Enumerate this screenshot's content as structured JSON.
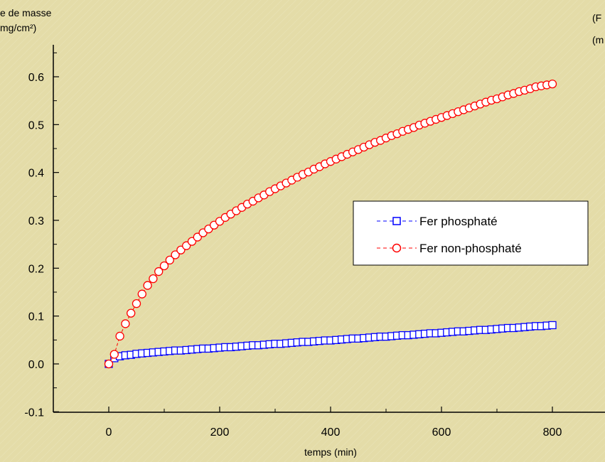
{
  "chart_data": {
    "type": "scatter",
    "title": "",
    "xlabel": "temps (min)",
    "ylabel_lines": [
      "e de masse",
      "mg/cm²)"
    ],
    "corner_text_lines": [
      "(F",
      "(m"
    ],
    "xlim": [
      -100,
      900
    ],
    "ylim": [
      -0.1,
      0.65
    ],
    "xticks": [
      0,
      200,
      400,
      600,
      800
    ],
    "xtick_labels": [
      "0",
      "200",
      "400",
      "600",
      "800"
    ],
    "yticks": [
      -0.1,
      0.0,
      0.1,
      0.2,
      0.3,
      0.4,
      0.5,
      0.6
    ],
    "ytick_labels": [
      "-0.1",
      "0.0",
      "0.1",
      "0.2",
      "0.3",
      "0.4",
      "0.5",
      "0.6"
    ],
    "grid": false,
    "legend_position": "center-right",
    "series": [
      {
        "name": "Fer phosphaté",
        "marker": "square",
        "color": "#0000ff",
        "x": [
          0,
          10,
          20,
          30,
          40,
          50,
          60,
          70,
          80,
          90,
          100,
          110,
          120,
          130,
          140,
          150,
          160,
          170,
          180,
          190,
          200,
          210,
          220,
          230,
          240,
          250,
          260,
          270,
          280,
          290,
          300,
          310,
          320,
          330,
          340,
          350,
          360,
          370,
          380,
          390,
          400,
          410,
          420,
          430,
          440,
          450,
          460,
          470,
          480,
          490,
          500,
          510,
          520,
          530,
          540,
          550,
          560,
          570,
          580,
          590,
          600,
          610,
          620,
          630,
          640,
          650,
          660,
          670,
          680,
          690,
          700,
          710,
          720,
          730,
          740,
          750,
          760,
          770,
          780,
          790,
          800
        ],
        "y": [
          0.0,
          0.012,
          0.016,
          0.018,
          0.019,
          0.021,
          0.022,
          0.023,
          0.024,
          0.025,
          0.026,
          0.027,
          0.028,
          0.028,
          0.029,
          0.03,
          0.031,
          0.032,
          0.032,
          0.033,
          0.034,
          0.035,
          0.035,
          0.036,
          0.037,
          0.038,
          0.039,
          0.039,
          0.04,
          0.041,
          0.042,
          0.042,
          0.043,
          0.044,
          0.045,
          0.046,
          0.046,
          0.047,
          0.048,
          0.049,
          0.049,
          0.05,
          0.051,
          0.052,
          0.053,
          0.053,
          0.054,
          0.055,
          0.056,
          0.057,
          0.057,
          0.058,
          0.059,
          0.06,
          0.06,
          0.061,
          0.062,
          0.063,
          0.064,
          0.064,
          0.065,
          0.066,
          0.067,
          0.068,
          0.068,
          0.069,
          0.07,
          0.071,
          0.071,
          0.072,
          0.073,
          0.074,
          0.075,
          0.075,
          0.076,
          0.077,
          0.078,
          0.079,
          0.079,
          0.08,
          0.081
        ]
      },
      {
        "name": "Fer non-phosphaté",
        "marker": "circle",
        "color": "#ff0000",
        "x": [
          0,
          10,
          20,
          30,
          40,
          50,
          60,
          70,
          80,
          90,
          100,
          110,
          120,
          130,
          140,
          150,
          160,
          170,
          180,
          190,
          200,
          210,
          220,
          230,
          240,
          250,
          260,
          270,
          280,
          290,
          300,
          310,
          320,
          330,
          340,
          350,
          360,
          370,
          380,
          390,
          400,
          410,
          420,
          430,
          440,
          450,
          460,
          470,
          480,
          490,
          500,
          510,
          520,
          530,
          540,
          550,
          560,
          570,
          580,
          590,
          600,
          610,
          620,
          630,
          640,
          650,
          660,
          670,
          680,
          690,
          700,
          710,
          720,
          730,
          740,
          750,
          760,
          770,
          780,
          790,
          800
        ],
        "y": [
          0.0,
          0.02,
          0.058,
          0.084,
          0.106,
          0.126,
          0.146,
          0.164,
          0.178,
          0.193,
          0.205,
          0.217,
          0.228,
          0.238,
          0.247,
          0.256,
          0.265,
          0.274,
          0.282,
          0.29,
          0.298,
          0.306,
          0.313,
          0.32,
          0.327,
          0.334,
          0.34,
          0.347,
          0.353,
          0.36,
          0.366,
          0.372,
          0.378,
          0.384,
          0.39,
          0.396,
          0.401,
          0.407,
          0.412,
          0.418,
          0.423,
          0.428,
          0.433,
          0.438,
          0.443,
          0.448,
          0.453,
          0.458,
          0.463,
          0.467,
          0.472,
          0.477,
          0.481,
          0.486,
          0.49,
          0.494,
          0.499,
          0.503,
          0.507,
          0.511,
          0.515,
          0.519,
          0.523,
          0.527,
          0.531,
          0.535,
          0.539,
          0.543,
          0.547,
          0.551,
          0.554,
          0.558,
          0.562,
          0.565,
          0.569,
          0.572,
          0.575,
          0.579,
          0.581,
          0.583,
          0.585
        ]
      }
    ]
  }
}
